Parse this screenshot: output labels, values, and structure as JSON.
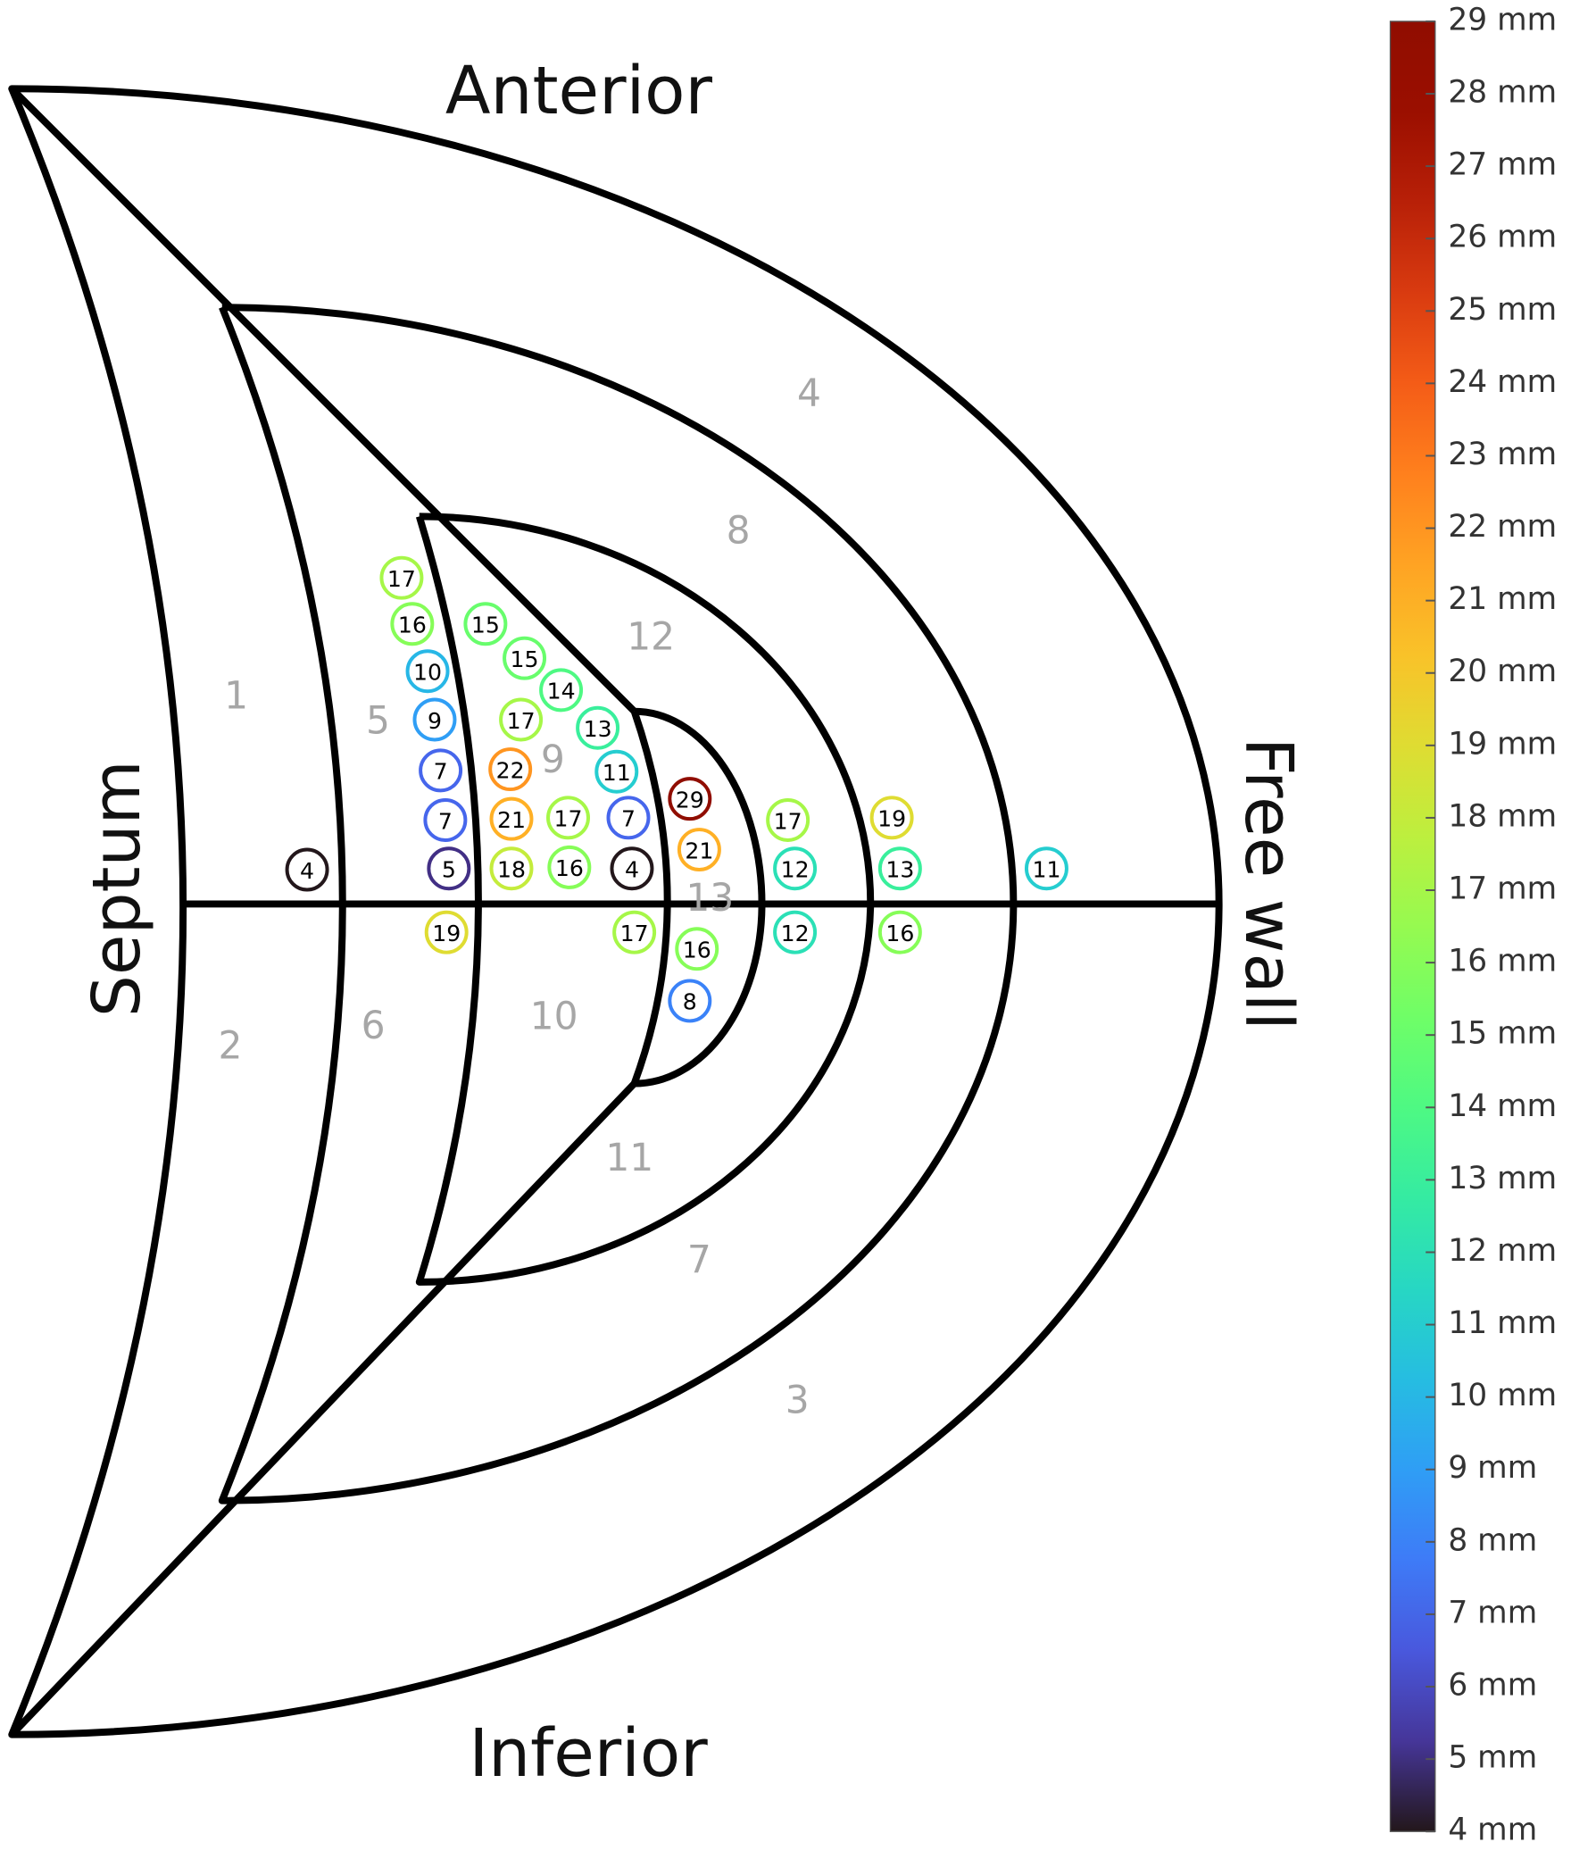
{
  "labels": {
    "top": "Anterior",
    "bottom": "Inferior",
    "left": "Septum",
    "right": "Free wall"
  },
  "segments": [
    "1",
    "2",
    "3",
    "4",
    "5",
    "6",
    "7",
    "8",
    "9",
    "10",
    "11",
    "12",
    "13"
  ],
  "points": [
    17,
    16,
    10,
    9,
    7,
    7,
    5,
    4,
    19,
    15,
    15,
    14,
    17,
    13,
    22,
    11,
    21,
    17,
    7,
    18,
    16,
    4,
    29,
    21,
    17,
    16,
    8,
    17,
    12,
    12,
    19,
    13,
    16,
    11
  ],
  "colorbar": {
    "ticks": [
      {
        "value": 4,
        "label": "4 mm"
      },
      {
        "value": 5,
        "label": "5 mm"
      },
      {
        "value": 6,
        "label": "6 mm"
      },
      {
        "value": 7,
        "label": "7 mm"
      },
      {
        "value": 8,
        "label": "8 mm"
      },
      {
        "value": 9,
        "label": "9 mm"
      },
      {
        "value": 10,
        "label": "10 mm"
      },
      {
        "value": 11,
        "label": "11 mm"
      },
      {
        "value": 12,
        "label": "12 mm"
      },
      {
        "value": 13,
        "label": "13 mm"
      },
      {
        "value": 14,
        "label": "14 mm"
      },
      {
        "value": 15,
        "label": "15 mm"
      },
      {
        "value": 16,
        "label": "16 mm"
      },
      {
        "value": 17,
        "label": "17 mm"
      },
      {
        "value": 18,
        "label": "18 mm"
      },
      {
        "value": 19,
        "label": "19 mm"
      },
      {
        "value": 20,
        "label": "20 mm"
      },
      {
        "value": 21,
        "label": "21 mm"
      },
      {
        "value": 22,
        "label": "22 mm"
      },
      {
        "value": 23,
        "label": "23 mm"
      },
      {
        "value": 24,
        "label": "24 mm"
      },
      {
        "value": 25,
        "label": "25 mm"
      },
      {
        "value": 26,
        "label": "26 mm"
      },
      {
        "value": 27,
        "label": "27 mm"
      },
      {
        "value": 28,
        "label": "28 mm"
      },
      {
        "value": 29,
        "label": "29 mm"
      }
    ]
  }
}
